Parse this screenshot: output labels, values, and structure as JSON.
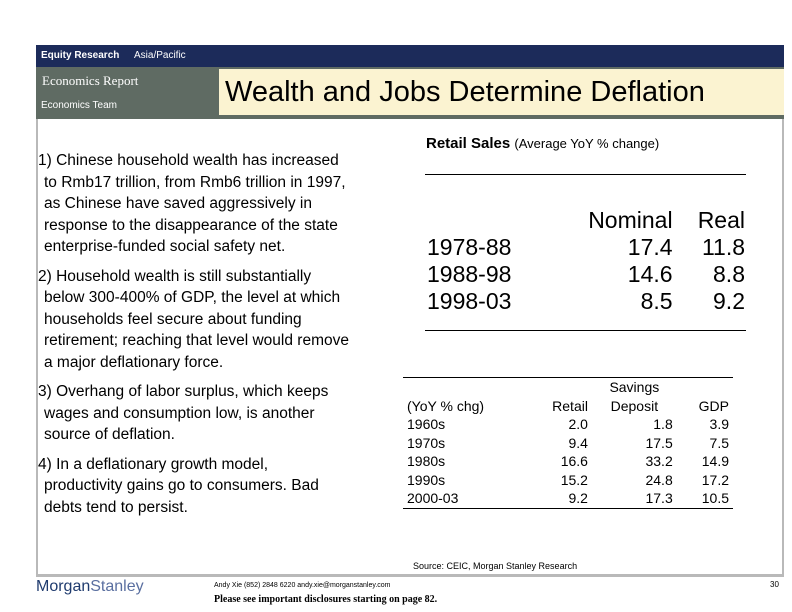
{
  "header": {
    "research_label": "Equity Research",
    "region": "Asia/Pacific",
    "report_type": "Economics Report",
    "team": "Economics Team",
    "title": "Wealth and Jobs Determine Deflation"
  },
  "bullets": [
    "1) Chinese household wealth has increased\nto Rmb17 trillion, from Rmb6 trillion in 1997,\nas Chinese have saved aggressively in\nresponse to the disappearance of the state\nenterprise-funded social safety net.",
    "2) Household wealth is still substantially\nbelow 300-400% of GDP, the level at which\nhouseholds feel secure about funding\nretirement; reaching that level would remove\na major deflationary force.",
    "3) Overhang of labor surplus, which keeps\nwages and consumption low, is another\nsource of deflation.",
    "4) In a deflationary growth model,\nproductivity gains go to consumers.  Bad\ndebts tend to persist."
  ],
  "retail_sales": {
    "title": "Retail Sales",
    "subtitle": "(Average YoY % change)",
    "headers": [
      "",
      "Nominal",
      "Real"
    ],
    "rows": [
      {
        "period": "1978-88",
        "nominal": "17.4",
        "real": "11.8"
      },
      {
        "period": "1988-98",
        "nominal": "14.6",
        "real": "8.8"
      },
      {
        "period": "1998-03",
        "nominal": "8.5",
        "real": "9.2"
      }
    ]
  },
  "savings": {
    "savings_header": "Savings",
    "headers": [
      "(YoY % chg)",
      "Retail",
      "Deposit",
      "GDP"
    ],
    "rows": [
      {
        "decade": "1960s",
        "retail": "2.0",
        "deposit": "1.8",
        "gdp": "3.9"
      },
      {
        "decade": "1970s",
        "retail": "9.4",
        "deposit": "17.5",
        "gdp": "7.5"
      },
      {
        "decade": "1980s",
        "retail": "16.6",
        "deposit": "33.2",
        "gdp": "14.9"
      },
      {
        "decade": "1990s",
        "retail": "15.2",
        "deposit": "24.8",
        "gdp": "17.2"
      },
      {
        "decade": "2000-03",
        "retail": "9.2",
        "deposit": "17.3",
        "gdp": "10.5"
      }
    ]
  },
  "source": "Source: CEIC, Morgan Stanley Research",
  "footer": {
    "logo_morgan": "Morgan",
    "logo_stanley": "Stanley",
    "contact": "Andy Xie (852) 2848 6220  andy.xie@morganstanley.com",
    "disclosure": "Please see important disclosures starting on page 82.",
    "page": "30"
  }
}
